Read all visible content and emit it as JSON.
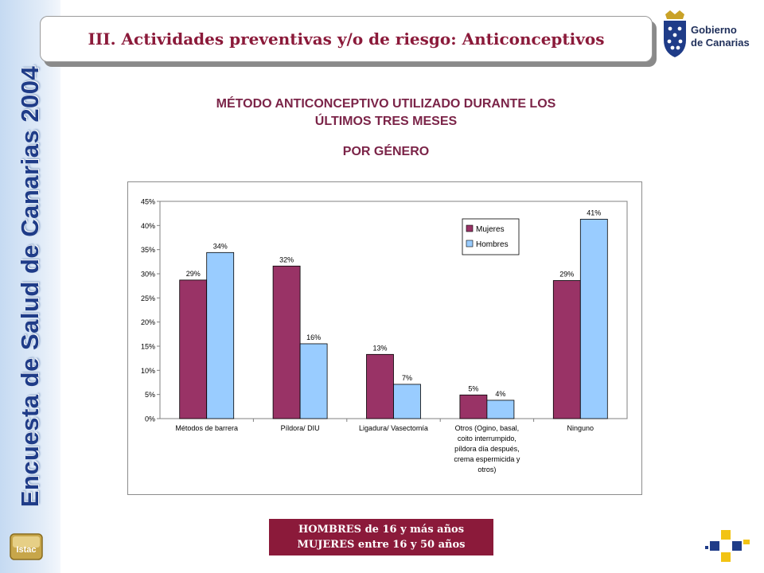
{
  "sidebar": {
    "title": "Encuesta de Salud de Canarias 2004",
    "logo_label": "Istac"
  },
  "header": {
    "title": "III. Actividades preventivas y/o de riesgo: Anticonceptivos"
  },
  "logo": {
    "line1": "Gobierno",
    "line2": "de Canarias"
  },
  "heading": {
    "line1": "MÉTODO ANTICONCEPTIVO UTILIZADO DURANTE LOS",
    "line2": "ÚLTIMOS TRES MESES",
    "line3": "POR GÉNERO"
  },
  "footer": {
    "line1": "HOMBRES de 16 y más años",
    "line2": "MUJERES entre 16 y 50 años"
  },
  "colors": {
    "mujeres": "#993366",
    "hombres": "#99ccff",
    "accent": "#8b1a3a"
  },
  "chart_data": {
    "type": "bar",
    "categories": [
      [
        "Métodos de barrera"
      ],
      [
        "Píldora/ DIU"
      ],
      [
        "Ligadura/ Vasectomía"
      ],
      [
        "Otros (Ogino, basal,",
        "coito interrumpido,",
        "píldora día después,",
        "crema espermicida y",
        "otros)"
      ],
      [
        "Ninguno"
      ]
    ],
    "series": [
      {
        "name": "Mujeres",
        "values": [
          28.7,
          31.6,
          13.3,
          4.9,
          28.6
        ],
        "labels": [
          "29%",
          "32%",
          "13%",
          "5%",
          "29%"
        ]
      },
      {
        "name": "Hombres",
        "values": [
          34.4,
          15.5,
          7.1,
          3.8,
          41.3
        ],
        "labels": [
          "34%",
          "16%",
          "7%",
          "4%",
          "41%"
        ]
      }
    ],
    "ylim": [
      0,
      45
    ],
    "yticks": [
      0,
      5,
      10,
      15,
      20,
      25,
      30,
      35,
      40,
      45
    ],
    "ytick_labels": [
      "0%",
      "5%",
      "10%",
      "15%",
      "20%",
      "25%",
      "30%",
      "35%",
      "40%",
      "45%"
    ],
    "legend_position": "top-right",
    "grid": false
  }
}
